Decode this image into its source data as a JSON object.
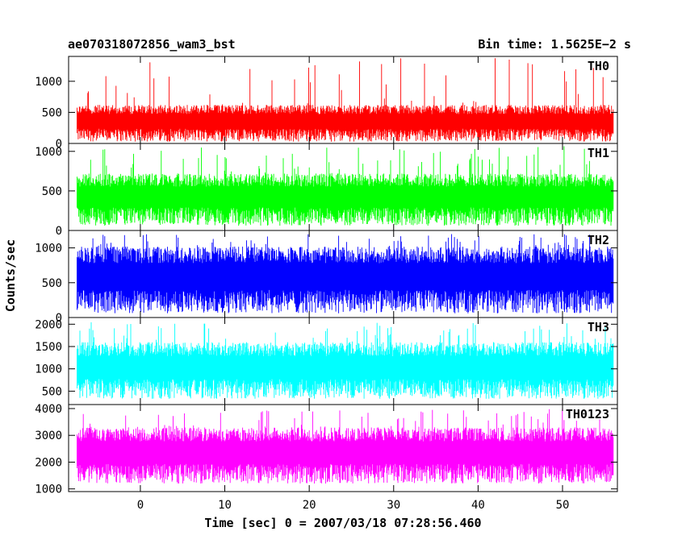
{
  "header": {
    "title": "ae070318072856_wam3_bst",
    "bin_time": "Bin time: 1.5625E−2 s"
  },
  "axes": {
    "ylabel": "Counts/sec",
    "xlabel": "Time [sec] 0 = 2007/03/18 07:28:56.460",
    "x_ticks": [
      0,
      10,
      20,
      30,
      40,
      50
    ],
    "xlim": [
      -8.5,
      56.5
    ],
    "x_data_range": [
      -7.5,
      56
    ]
  },
  "chart_data": [
    {
      "type": "line",
      "name": "TH0",
      "color": "#ff0000",
      "ylim": [
        0,
        1400
      ],
      "yticks": [
        0,
        500,
        1000
      ],
      "level_low": 30,
      "level_high": 620,
      "max_peak": 1380,
      "typical_value": 450
    },
    {
      "type": "line",
      "name": "TH1",
      "color": "#00ff00",
      "ylim": [
        0,
        1100
      ],
      "yticks": [
        0,
        500,
        1000
      ],
      "level_low": 60,
      "level_high": 720,
      "max_peak": 1080,
      "typical_value": 400
    },
    {
      "type": "line",
      "name": "TH2",
      "color": "#0000ff",
      "ylim": [
        0,
        1250
      ],
      "yticks": [
        0,
        500,
        1000
      ],
      "level_low": 60,
      "level_high": 1020,
      "max_peak": 1200,
      "typical_value": 540
    },
    {
      "type": "line",
      "name": "TH3",
      "color": "#00ffff",
      "ylim": [
        200,
        2150
      ],
      "yticks": [
        500,
        1000,
        1500,
        2000
      ],
      "level_low": 330,
      "level_high": 1600,
      "max_peak": 2050,
      "typical_value": 1000
    },
    {
      "type": "line",
      "name": "TH0123",
      "color": "#ff00ff",
      "ylim": [
        900,
        4150
      ],
      "yticks": [
        1000,
        2000,
        3000,
        4000
      ],
      "level_low": 1200,
      "level_high": 3300,
      "max_peak": 4000,
      "typical_value": 2300
    }
  ]
}
